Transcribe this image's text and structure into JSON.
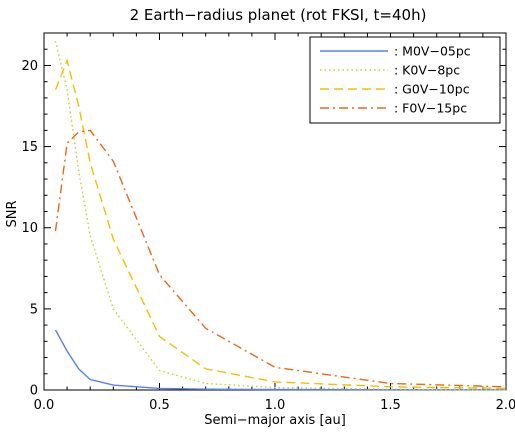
{
  "chart_data": {
    "type": "line",
    "title": "2 Earth−radius planet (rot FKSI, t=40h)",
    "xlabel": "Semi−major axis [au]",
    "ylabel": "SNR",
    "xlim": [
      0.0,
      2.0
    ],
    "ylim": [
      0,
      22
    ],
    "x_ticks": [
      "0.0",
      "0.5",
      "1.0",
      "1.5",
      "2.0"
    ],
    "y_ticks": [
      "0",
      "5",
      "10",
      "15",
      "20"
    ],
    "grid": false,
    "legend_position": "top-right",
    "series": [
      {
        "name": ": M0V−05pc",
        "color": "#5b7ff0",
        "dash": "solid",
        "x": [
          0.05,
          0.1,
          0.15,
          0.2,
          0.3,
          0.5,
          0.7,
          1.0,
          1.5,
          2.0
        ],
        "y": [
          3.7,
          2.4,
          1.3,
          0.65,
          0.3,
          0.1,
          0.05,
          0.03,
          0.02,
          0.01
        ]
      },
      {
        "name": ": K0V−8pc",
        "color": "#c8d020",
        "dash": "dotted",
        "x": [
          0.05,
          0.1,
          0.15,
          0.2,
          0.3,
          0.5,
          0.7,
          1.0,
          1.5,
          2.0
        ],
        "y": [
          21.5,
          18.5,
          13.5,
          9.5,
          5.0,
          1.2,
          0.4,
          0.15,
          0.05,
          0.02
        ]
      },
      {
        "name": ": G0V−10pc",
        "color": "#f0c000",
        "dash": "dashed",
        "x": [
          0.05,
          0.1,
          0.15,
          0.2,
          0.3,
          0.5,
          0.7,
          1.0,
          1.5,
          2.0
        ],
        "y": [
          18.5,
          20.3,
          17.5,
          14.0,
          9.3,
          3.3,
          1.3,
          0.5,
          0.2,
          0.1
        ]
      },
      {
        "name": ": F0V−15pc",
        "color": "#e66a1a",
        "dash": "dashdot",
        "x": [
          0.05,
          0.1,
          0.15,
          0.2,
          0.3,
          0.5,
          0.7,
          1.0,
          1.5,
          2.0
        ],
        "y": [
          9.8,
          15.2,
          15.9,
          16.0,
          14.1,
          7.1,
          3.8,
          1.4,
          0.4,
          0.2
        ]
      }
    ]
  }
}
